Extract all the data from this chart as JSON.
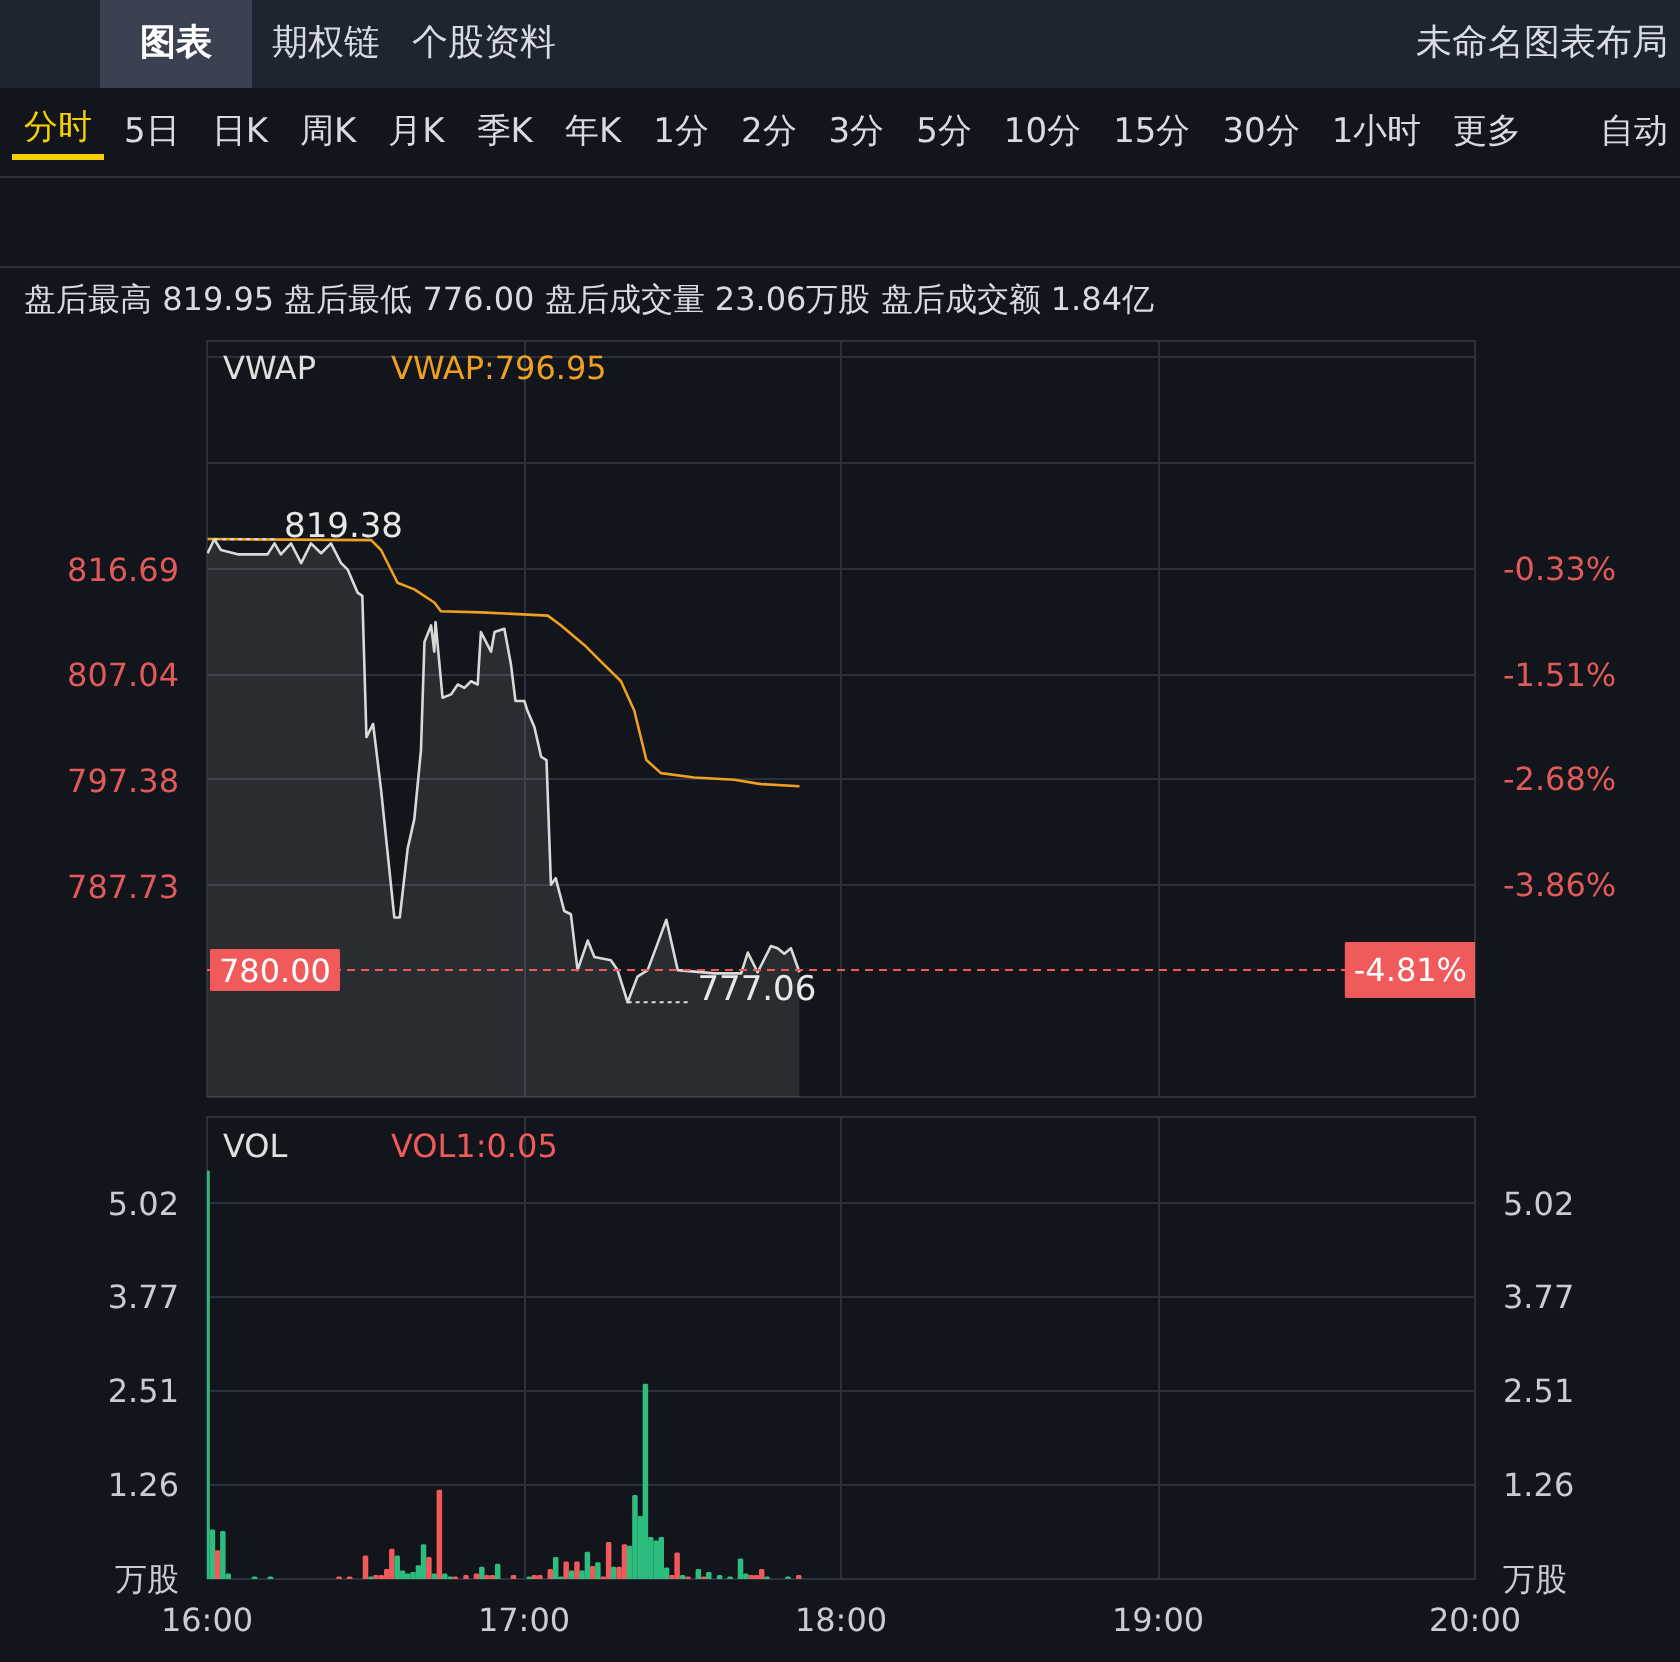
{
  "chart_data": [
    {
      "type": "other",
      "annotations": [
        "图表",
        "期权链",
        "个股资料",
        "未命名图表布局"
      ]
    },
    {
      "type": "other",
      "annotations": [
        "分时",
        "5日",
        "日K",
        "周K",
        "月K",
        "季K",
        "年K",
        "1分",
        "2分",
        "3分",
        "5分",
        "10分",
        "15分",
        "30分",
        "1小时",
        "更多",
        "自动"
      ]
    },
    {
      "type": "other",
      "annotations": [
        "盘后最高 819.95 盘后最低 776.00 盘后成交量 23.06万股 盘后成交额 1.84亿"
      ]
    },
    {
      "type": "line",
      "legend_title": "VWAP",
      "grid": true,
      "tick_labels": "y",
      "xlim": [
        16,
        20
      ],
      "xticks": [
        {
          "value": 16,
          "label": null
        },
        {
          "value": 17,
          "label": null
        },
        {
          "value": 18,
          "label": null
        },
        {
          "value": 19,
          "label": null
        },
        {
          "value": 20,
          "label": null
        }
      ],
      "ylim": [
        768.4,
        837.5
      ],
      "yticks": [
        {
          "value": 787.73,
          "label": "787.73"
        },
        {
          "value": 797.38,
          "label": "797.38"
        },
        {
          "value": 807.04,
          "label": "807.04"
        },
        {
          "value": 816.69,
          "label": "816.69"
        },
        {
          "value": 826.35,
          "label": null
        },
        {
          "value": 836.0,
          "label": null
        }
      ],
      "y2lim": [
        -6.23,
        2.22
      ],
      "y2ticks": [
        {
          "value": -3.86,
          "label": "-3.86%"
        },
        {
          "value": -2.68,
          "label": "-2.68%"
        },
        {
          "value": -1.51,
          "label": "-1.51%"
        },
        {
          "value": -0.33,
          "label": "-0.33%"
        }
      ],
      "series": [
        {
          "type": "area",
          "color": "#d9d9d9",
          "x": [
            16.002,
            16.023,
            16.044,
            16.097,
            16.191,
            16.213,
            16.233,
            16.265,
            16.297,
            16.328,
            16.36,
            16.391,
            16.423,
            16.444,
            16.475,
            16.49,
            16.503,
            16.524,
            16.549,
            16.591,
            16.608,
            16.633,
            16.654,
            16.675,
            16.686,
            16.707,
            16.717,
            16.721,
            16.743,
            16.77,
            16.791,
            16.812,
            16.833,
            16.854,
            16.864,
            16.896,
            16.907,
            16.938,
            16.959,
            16.973,
            17.001,
            17.011,
            17.033,
            17.054,
            17.071,
            17.085,
            17.1,
            17.127,
            17.148,
            17.169,
            17.201,
            17.222,
            17.274,
            17.295,
            17.327,
            17.358,
            17.39,
            17.421,
            17.449,
            17.485,
            17.601,
            17.685,
            17.706,
            17.737,
            17.779,
            17.8,
            17.821,
            17.842,
            17.869
          ],
          "values": [
            818.1,
            819.38,
            818.4,
            818.0,
            818.0,
            819.0,
            818.0,
            819.0,
            817.2,
            819.0,
            818.1,
            819.0,
            817.2,
            816.6,
            814.5,
            814.2,
            801.3,
            802.5,
            796.5,
            784.8,
            784.8,
            791.1,
            793.8,
            800.1,
            810.0,
            811.5,
            809.1,
            811.8,
            804.9,
            805.2,
            806.1,
            805.8,
            806.4,
            806.1,
            810.9,
            809.1,
            810.9,
            811.2,
            807.9,
            804.6,
            804.6,
            803.7,
            802.2,
            799.5,
            799.2,
            787.8,
            788.4,
            785.4,
            785.1,
            780.0,
            782.7,
            781.2,
            780.9,
            780.0,
            777.06,
            779.4,
            780.0,
            782.4,
            784.6,
            780.0,
            779.7,
            779.7,
            781.6,
            779.8,
            782.2,
            782.0,
            781.5,
            782.0,
            779.8
          ]
        },
        {
          "type": "line",
          "name": "VWAP:796.95",
          "color": "#f0a020",
          "x": [
            16.002,
            16.518,
            16.549,
            16.601,
            16.654,
            16.717,
            16.738,
            16.864,
            17.075,
            17.117,
            17.191,
            17.243,
            17.306,
            17.348,
            17.386,
            17.432,
            17.537,
            17.663,
            17.747,
            17.869
          ],
          "values": [
            819.4,
            819.3,
            818.4,
            815.4,
            814.8,
            813.6,
            812.8,
            812.7,
            812.4,
            811.5,
            809.7,
            808.2,
            806.4,
            803.7,
            799.2,
            798.0,
            797.6,
            797.4,
            797.0,
            796.8
          ]
        }
      ],
      "ref_lines": [
        {
          "axis": "y",
          "value": 780.0,
          "label": "780.00",
          "color": "#f05a5a",
          "line_style": "dashed"
        }
      ],
      "annotations": [
        {
          "text": "819.38",
          "x": 16.023,
          "y": 819.38
        },
        {
          "text": "777.06",
          "x": 17.327,
          "y": 777.06
        },
        {
          "text": "-4.81%",
          "x": 20,
          "y": 780.0
        }
      ]
    },
    {
      "type": "bar",
      "legend_title": "VOL",
      "grid": true,
      "xlim": [
        16,
        20
      ],
      "xticks": [
        {
          "value": 16,
          "label": "16:00"
        },
        {
          "value": 17,
          "label": "17:00"
        },
        {
          "value": 18,
          "label": "18:00"
        },
        {
          "value": 19,
          "label": "19:00"
        },
        {
          "value": 20,
          "label": "20:00"
        }
      ],
      "ylim": [
        0,
        6.18
      ],
      "yticks": [
        {
          "value": 0,
          "label": "万股"
        },
        1.26,
        2.51,
        3.77,
        5.02
      ],
      "y2lim": [
        0,
        6.18
      ],
      "y2ticks": [
        {
          "value": 0,
          "label": "万股"
        },
        1.26,
        2.51,
        3.77,
        5.02
      ],
      "series": [
        {
          "name": "VOL1:0.05",
          "color": "#f05a5a",
          "x": [
            16.0,
            16.017,
            16.033,
            16.05,
            16.067,
            16.15,
            16.2,
            16.417,
            16.45,
            16.5,
            16.517,
            16.533,
            16.55,
            16.567,
            16.583,
            16.6,
            16.617,
            16.633,
            16.65,
            16.667,
            16.683,
            16.7,
            16.717,
            16.733,
            16.75,
            16.767,
            16.783,
            16.817,
            16.85,
            16.867,
            16.883,
            16.9,
            16.917,
            16.967,
            17.017,
            17.033,
            17.05,
            17.083,
            17.1,
            17.117,
            17.133,
            17.15,
            17.167,
            17.183,
            17.2,
            17.217,
            17.233,
            17.25,
            17.267,
            17.283,
            17.3,
            17.317,
            17.333,
            17.35,
            17.367,
            17.383,
            17.4,
            17.417,
            17.433,
            17.45,
            17.467,
            17.483,
            17.5,
            17.517,
            17.55,
            17.567,
            17.583,
            17.617,
            17.65,
            17.683,
            17.7,
            17.717,
            17.733,
            17.75,
            17.767,
            17.833,
            17.867
          ],
          "values": [
            5.45,
            0.65,
            0.37,
            0.63,
            0.06,
            0.02,
            0.02,
            0.02,
            0.02,
            0.3,
            0.02,
            0.04,
            0.04,
            0.12,
            0.39,
            0.3,
            0.1,
            0.06,
            0.08,
            0.17,
            0.45,
            0.28,
            0.06,
            1.18,
            0.06,
            0.02,
            0.02,
            0.04,
            0.06,
            0.15,
            0.04,
            0.04,
            0.19,
            0.04,
            0.02,
            0.04,
            0.04,
            0.12,
            0.28,
            0.02,
            0.22,
            0.1,
            0.22,
            0.1,
            0.35,
            0.16,
            0.21,
            0.02,
            0.48,
            0.15,
            0.15,
            0.45,
            0.43,
            1.11,
            0.83,
            2.6,
            0.55,
            0.5,
            0.55,
            0.14,
            0.04,
            0.34,
            0.04,
            0.02,
            0.12,
            0.02,
            0.08,
            0.04,
            0.02,
            0.26,
            0.06,
            0.04,
            0.04,
            0.12,
            0.02,
            0.02,
            0.04
          ],
          "colors": [
            "#2dbd7e",
            "#2dbd7e",
            "#f05a5a",
            "#2dbd7e",
            "#2dbd7e",
            "#2dbd7e",
            "#2dbd7e",
            "#f05a5a",
            "#f05a5a",
            "#f05a5a",
            "#2dbd7e",
            "#f05a5a",
            "#f05a5a",
            "#f05a5a",
            "#f05a5a",
            "#2dbd7e",
            "#2dbd7e",
            "#2dbd7e",
            "#2dbd7e",
            "#2dbd7e",
            "#2dbd7e",
            "#f05a5a",
            "#2dbd7e",
            "#f05a5a",
            "#2dbd7e",
            "#2dbd7e",
            "#f05a5a",
            "#f05a5a",
            "#f05a5a",
            "#2dbd7e",
            "#f05a5a",
            "#f05a5a",
            "#2dbd7e",
            "#f05a5a",
            "#2dbd7e",
            "#f05a5a",
            "#f05a5a",
            "#f05a5a",
            "#2dbd7e",
            "#2dbd7e",
            "#f05a5a",
            "#2dbd7e",
            "#f05a5a",
            "#2dbd7e",
            "#2dbd7e",
            "#f05a5a",
            "#2dbd7e",
            "#f05a5a",
            "#f05a5a",
            "#2dbd7e",
            "#f05a5a",
            "#f05a5a",
            "#2dbd7e",
            "#2dbd7e",
            "#2dbd7e",
            "#2dbd7e",
            "#2dbd7e",
            "#2dbd7e",
            "#2dbd7e",
            "#2dbd7e",
            "#f05a5a",
            "#f05a5a",
            "#2dbd7e",
            "#f05a5a",
            "#2dbd7e",
            "#f05a5a",
            "#2dbd7e",
            "#2dbd7e",
            "#2dbd7e",
            "#2dbd7e",
            "#2dbd7e",
            "#f05a5a",
            "#f05a5a",
            "#f05a5a",
            "#2dbd7e",
            "#2dbd7e",
            "#f05a5a"
          ]
        }
      ]
    }
  ]
}
